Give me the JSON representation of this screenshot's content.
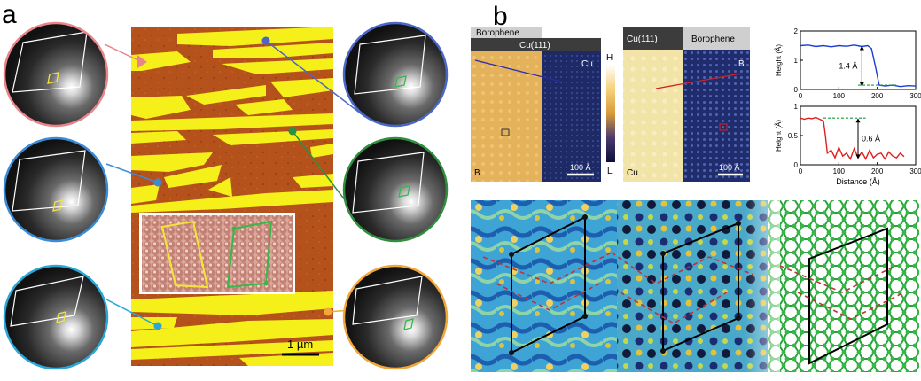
{
  "panel_a": {
    "label": "a",
    "scale_bar": "1 µm",
    "colors": {
      "ring_pink": "#e8848a",
      "ring_blue": "#4a67c8",
      "ring_green": "#2f8f3f",
      "ring_lightblue": "#3a8bd6",
      "ring_cyan": "#2aa7d8",
      "ring_orange": "#f2a73a",
      "afm_brown": "#b5521c",
      "afm_yellow": "#f5ef1a"
    }
  },
  "panel_b": {
    "label": "b",
    "stm_left": {
      "tab_top": "Borophene",
      "tab_main": "Cu(111)",
      "label_cu": "Cu",
      "label_b": "B",
      "scale_bar": "100 Å"
    },
    "stm_right": {
      "tab_main": "Cu(111)",
      "tab_top": "Borophene",
      "label_b": "B",
      "label_cu": "Cu",
      "scale_bar": "100 Å"
    },
    "colorbar": {
      "high": "H",
      "low": "L"
    }
  },
  "chart_data": [
    {
      "type": "line",
      "ylabel": "Height (Å)",
      "xlabel": "",
      "xlim": [
        0,
        300
      ],
      "ylim": [
        0,
        2
      ],
      "xticks": [
        0,
        100,
        200,
        300
      ],
      "yticks": [
        0,
        1,
        2
      ],
      "annotation": "1.4 Å",
      "series": [
        {
          "color": "#1a3fd6",
          "x": [
            0,
            20,
            40,
            60,
            80,
            100,
            120,
            140,
            160,
            175,
            185,
            195,
            205,
            220,
            240,
            260,
            280,
            300
          ],
          "y": [
            1.5,
            1.52,
            1.47,
            1.5,
            1.46,
            1.5,
            1.48,
            1.52,
            1.47,
            1.5,
            1.4,
            0.8,
            0.15,
            0.12,
            0.15,
            0.1,
            0.13,
            0.12
          ]
        }
      ]
    },
    {
      "type": "line",
      "ylabel": "Height (Å)",
      "xlabel": "Distance (Å)",
      "xlim": [
        0,
        300
      ],
      "ylim": [
        0,
        1
      ],
      "xticks": [
        0,
        100,
        200,
        300
      ],
      "yticks": [
        0,
        0.5,
        1.0
      ],
      "annotation": "0.6 Å",
      "series": [
        {
          "color": "#e02020",
          "x": [
            0,
            10,
            20,
            30,
            40,
            50,
            60,
            65,
            70,
            80,
            90,
            100,
            110,
            120,
            130,
            140,
            150,
            160,
            170,
            180,
            190,
            200,
            210,
            220,
            230,
            240,
            250,
            260,
            270
          ],
          "y": [
            0.8,
            0.78,
            0.8,
            0.79,
            0.81,
            0.78,
            0.75,
            0.5,
            0.2,
            0.25,
            0.12,
            0.3,
            0.15,
            0.2,
            0.1,
            0.28,
            0.12,
            0.22,
            0.1,
            0.25,
            0.12,
            0.18,
            0.2,
            0.1,
            0.22,
            0.15,
            0.12,
            0.2,
            0.14
          ]
        }
      ]
    }
  ]
}
